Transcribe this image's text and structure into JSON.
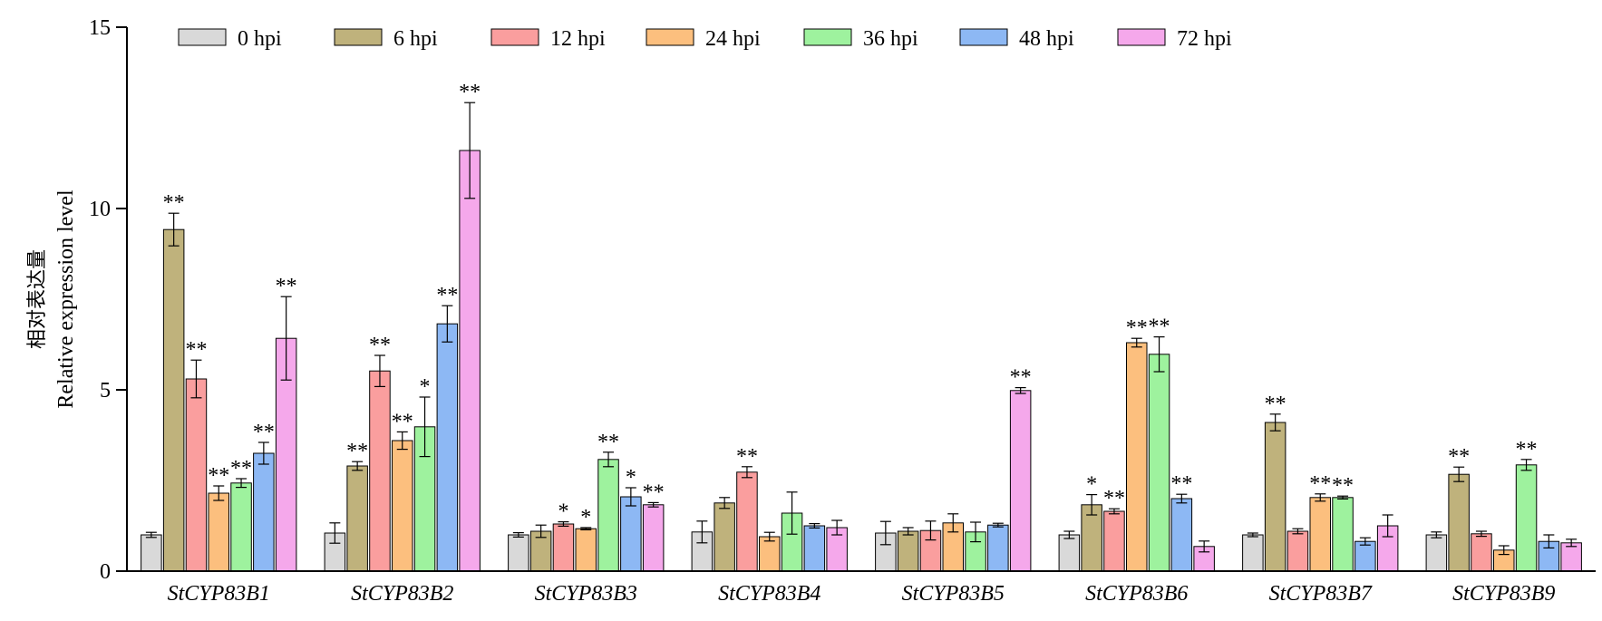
{
  "chart_data": {
    "type": "bar",
    "ylabel_cn": "相对表达量",
    "ylabel": "Relative expression level",
    "ylim": [
      0,
      15
    ],
    "yticks": [
      "0",
      "5",
      "10",
      "15"
    ],
    "legend_position": "top",
    "categories": [
      "StCYP83B1",
      "StCYP83B2",
      "StCYP83B3",
      "StCYP83B4",
      "StCYP83B5",
      "StCYP83B6",
      "StCYP83B7",
      "StCYP83B9"
    ],
    "series": [
      {
        "name": "0 hpi",
        "color": "#d9d9d9",
        "values": [
          1.0,
          1.05,
          1.0,
          1.08,
          1.05,
          1.0,
          1.0,
          1.0
        ],
        "errors": [
          0.07,
          0.28,
          0.06,
          0.3,
          0.32,
          0.1,
          0.05,
          0.08
        ],
        "sig": [
          "",
          "",
          "",
          "",
          "",
          "",
          "",
          ""
        ]
      },
      {
        "name": "6 hpi",
        "color": "#bfb27c",
        "values": [
          9.42,
          2.9,
          1.1,
          1.88,
          1.1,
          1.83,
          4.1,
          2.67
        ],
        "errors": [
          0.45,
          0.12,
          0.17,
          0.15,
          0.1,
          0.28,
          0.23,
          0.2
        ],
        "sig": [
          "**",
          "**",
          "",
          "",
          "",
          "*",
          "**",
          "**"
        ]
      },
      {
        "name": "12 hpi",
        "color": "#fa9e9e",
        "values": [
          5.3,
          5.52,
          1.3,
          2.73,
          1.12,
          1.65,
          1.1,
          1.03
        ],
        "errors": [
          0.52,
          0.43,
          0.06,
          0.15,
          0.26,
          0.07,
          0.07,
          0.07
        ],
        "sig": [
          "**",
          "**",
          "*",
          "**",
          "",
          "**",
          "",
          ""
        ]
      },
      {
        "name": "24 hpi",
        "color": "#fcbf7e",
        "values": [
          2.15,
          3.6,
          1.17,
          0.95,
          1.33,
          6.3,
          2.03,
          0.58
        ],
        "errors": [
          0.2,
          0.24,
          0.03,
          0.12,
          0.25,
          0.12,
          0.1,
          0.12
        ],
        "sig": [
          "**",
          "**",
          "*",
          "",
          "",
          "**",
          "**",
          ""
        ]
      },
      {
        "name": "36 hpi",
        "color": "#9ef29e",
        "values": [
          2.43,
          3.98,
          3.08,
          1.6,
          1.08,
          5.98,
          2.03,
          2.93
        ],
        "errors": [
          0.12,
          0.82,
          0.2,
          0.58,
          0.27,
          0.48,
          0.04,
          0.15
        ],
        "sig": [
          "**",
          "*",
          "**",
          "",
          "",
          "**",
          "**",
          "**"
        ]
      },
      {
        "name": "48 hpi",
        "color": "#8db8f4",
        "values": [
          3.25,
          6.82,
          2.05,
          1.25,
          1.27,
          2.0,
          0.82,
          0.82
        ],
        "errors": [
          0.3,
          0.5,
          0.25,
          0.06,
          0.05,
          0.12,
          0.1,
          0.18
        ],
        "sig": [
          "**",
          "**",
          "*",
          "",
          "",
          "**",
          "",
          ""
        ]
      },
      {
        "name": "72 hpi",
        "color": "#f5a8eb",
        "values": [
          6.42,
          11.6,
          1.83,
          1.2,
          4.98,
          0.68,
          1.25,
          0.78
        ],
        "errors": [
          1.15,
          1.32,
          0.06,
          0.2,
          0.08,
          0.15,
          0.3,
          0.1
        ],
        "sig": [
          "**",
          "**",
          "**",
          "",
          "**",
          "",
          "",
          ""
        ]
      }
    ]
  }
}
